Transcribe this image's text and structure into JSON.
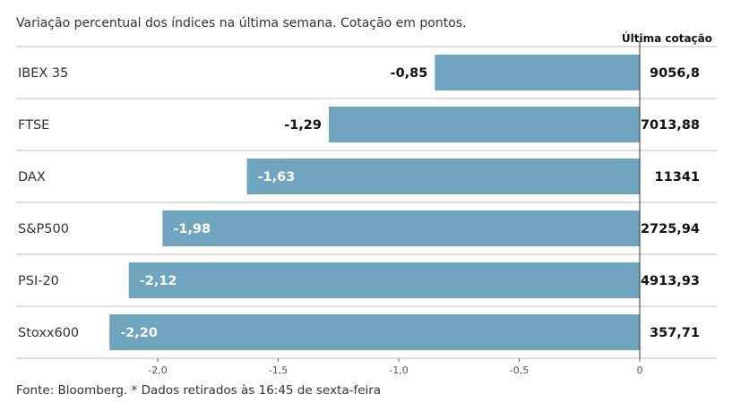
{
  "subtitle": "Variação percentual dos índices na última semana. Cotação em pontos.",
  "source": "Fonte: Bloomberg.  * Dados retirados às 16:45 de sexta-feira",
  "bar_color": "#6fa5bf",
  "chart_data": {
    "type": "bar",
    "orientation": "horizontal",
    "categories": [
      "IBEX 35",
      "FTSE",
      "DAX",
      "S&P500",
      "PSI-20",
      "Stoxx600"
    ],
    "values": [
      -0.85,
      -1.29,
      -1.63,
      -1.98,
      -2.12,
      -2.2
    ],
    "value_labels": [
      "-0,85",
      "-1,29",
      "-1,63",
      "-1,98",
      "-2,12",
      "-2,20"
    ],
    "last_quote_header": "Última cotação",
    "last_quote": [
      "9056,8",
      "7013,88",
      "11341",
      "2725,94",
      "4913,93",
      "357,71"
    ],
    "xlim": [
      -2.4,
      0
    ],
    "xticks": [
      -2.0,
      -1.5,
      -1.0,
      -0.5,
      0
    ],
    "xtick_labels": [
      "-2,0",
      "-1,5",
      "-1,0",
      "-0,5",
      "0"
    ],
    "grid": "row separators"
  }
}
